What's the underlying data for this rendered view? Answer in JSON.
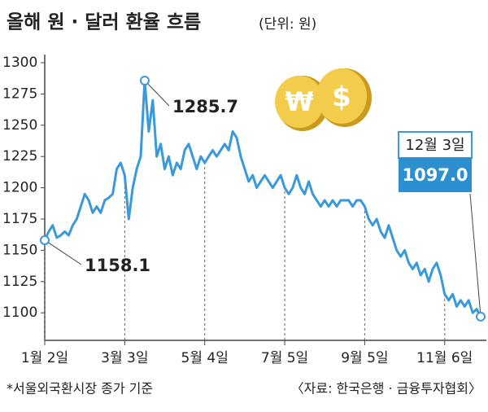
{
  "chart_data": {
    "type": "line",
    "title": "올해 원 · 달러 환율 흐름",
    "subtitle": "(단위: 원)",
    "categories": [
      "1월 2일",
      null,
      null,
      null,
      null,
      null,
      null,
      null,
      null,
      null,
      null,
      null,
      null,
      null,
      null,
      null,
      null,
      null,
      null,
      null,
      "3월 3일",
      null,
      null,
      null,
      null,
      null,
      null,
      null,
      null,
      null,
      null,
      null,
      null,
      null,
      null,
      null,
      null,
      null,
      null,
      null,
      "5월 4일",
      null,
      null,
      null,
      null,
      null,
      null,
      null,
      null,
      null,
      null,
      null,
      null,
      null,
      null,
      null,
      null,
      null,
      null,
      null,
      "7월 5일",
      null,
      null,
      null,
      null,
      null,
      null,
      null,
      null,
      null,
      null,
      null,
      null,
      null,
      null,
      null,
      null,
      null,
      null,
      null,
      "9월 5일",
      null,
      null,
      null,
      null,
      null,
      null,
      null,
      null,
      null,
      null,
      null,
      null,
      null,
      null,
      null,
      null,
      null,
      null,
      null,
      "11월 6일",
      null,
      null,
      null,
      null,
      null,
      null,
      null,
      null,
      null
    ],
    "values": [
      1158.1,
      1165,
      1170,
      1160,
      1162,
      1165,
      1162,
      1170,
      1175,
      1185,
      1195,
      1190,
      1180,
      1185,
      1180,
      1190,
      1192,
      1195,
      1215,
      1220,
      1210,
      1175,
      1200,
      1215,
      1225,
      1285.7,
      1245,
      1270,
      1225,
      1235,
      1215,
      1225,
      1210,
      1220,
      1215,
      1230,
      1235,
      1225,
      1215,
      1225,
      1220,
      1225,
      1230,
      1225,
      1230,
      1235,
      1230,
      1245,
      1240,
      1225,
      1215,
      1205,
      1210,
      1200,
      1205,
      1210,
      1205,
      1200,
      1205,
      1210,
      1200,
      1195,
      1200,
      1210,
      1200,
      1195,
      1205,
      1195,
      1190,
      1185,
      1190,
      1185,
      1190,
      1185,
      1190,
      1190,
      1190,
      1185,
      1190,
      1190,
      1185,
      1175,
      1170,
      1175,
      1165,
      1160,
      1170,
      1160,
      1150,
      1145,
      1150,
      1140,
      1135,
      1140,
      1130,
      1135,
      1125,
      1135,
      1140,
      1130,
      1115,
      1110,
      1115,
      1105,
      1110,
      1105,
      1110,
      1100,
      1103,
      1097
    ],
    "value_labels": [
      "1158.1",
      null,
      null,
      null,
      null,
      null,
      null,
      null,
      null,
      null,
      null,
      null,
      null,
      null,
      null,
      null,
      null,
      null,
      null,
      null,
      null,
      null,
      null,
      null,
      null,
      "1285.7",
      null,
      null,
      null,
      null,
      null,
      null,
      null,
      null,
      null,
      null,
      null,
      null,
      null,
      null,
      null,
      null,
      null,
      null,
      null,
      null,
      null,
      null,
      null,
      null,
      null,
      null,
      null,
      null,
      null,
      null,
      null,
      null,
      null,
      null,
      null,
      null,
      null,
      null,
      null,
      null,
      null,
      null,
      null,
      null,
      null,
      null,
      null,
      null,
      null,
      null,
      null,
      null,
      null,
      null,
      null,
      null,
      null,
      null,
      null,
      null,
      null,
      null,
      null,
      null,
      null,
      null,
      null,
      null,
      null,
      null,
      null,
      null,
      null,
      null,
      null,
      null,
      null,
      null,
      null,
      null,
      null,
      null,
      null,
      "1097.0"
    ],
    "end_date": "12월 3일",
    "color": "#3a9ad9",
    "ylim": [
      1078,
      1300
    ],
    "yticks": [
      1100,
      1125,
      1150,
      1175,
      1200,
      1225,
      1250,
      1275,
      1300
    ],
    "notes": [
      "*서울외국환시장 종가 기준",
      "〈자료: 한국은행 · 금융투자협회〉"
    ]
  }
}
